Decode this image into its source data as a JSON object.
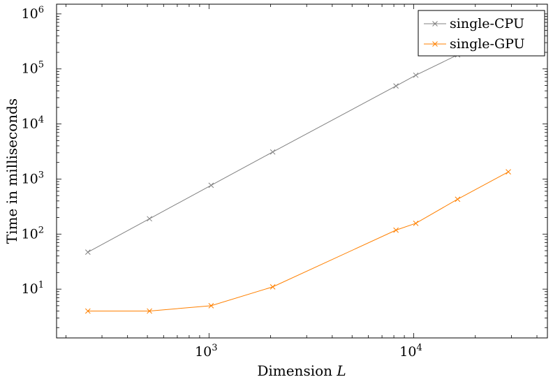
{
  "chart_data": {
    "type": "line",
    "xlabel": "Dimension",
    "xlabel_var": "L",
    "ylabel": "Time in milliseconds",
    "x_scale": "log",
    "y_scale": "log",
    "xlim": [
      180,
      45000
    ],
    "ylim": [
      1.3,
      1500000
    ],
    "x_ticks": [
      {
        "base": "10",
        "exp": "3",
        "value": 1000
      },
      {
        "base": "10",
        "exp": "4",
        "value": 10000
      }
    ],
    "y_ticks": [
      {
        "base": "10",
        "exp": "1",
        "value": 10
      },
      {
        "base": "10",
        "exp": "2",
        "value": 100
      },
      {
        "base": "10",
        "exp": "3",
        "value": 1000
      },
      {
        "base": "10",
        "exp": "4",
        "value": 10000
      },
      {
        "base": "10",
        "exp": "5",
        "value": 100000
      },
      {
        "base": "10",
        "exp": "6",
        "value": 1000000
      }
    ],
    "grid": false,
    "legend_position": "top-right",
    "series": [
      {
        "name": "single-CPU",
        "color": "#808080",
        "marker": "x",
        "x": [
          256,
          512,
          1024,
          2048,
          8192,
          10240,
          16384,
          29000
        ],
        "y": [
          47,
          190,
          770,
          3100,
          49000,
          77000,
          180000,
          550000
        ]
      },
      {
        "name": "single-GPU",
        "color": "#ff8000",
        "marker": "x",
        "x": [
          256,
          512,
          1024,
          2048,
          8192,
          10240,
          16384,
          29000
        ],
        "y": [
          4.0,
          4.0,
          5.0,
          11,
          118,
          157,
          430,
          1350
        ]
      }
    ]
  }
}
